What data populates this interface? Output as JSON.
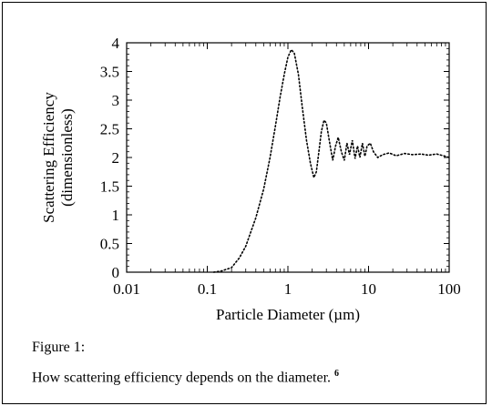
{
  "figure": {
    "label": "Figure 1:",
    "caption": "How scattering efficiency depends on the diameter.",
    "reference": "6"
  },
  "chart_data": {
    "type": "line",
    "xlabel": "Particle Diameter (µm)",
    "ylabel_line1": "Scattering Efficiency",
    "ylabel_line2": "(dimensionless)",
    "x_scale": "log",
    "xlim": [
      0.01,
      100
    ],
    "ylim": [
      0,
      4
    ],
    "x_ticks": [
      0.01,
      0.1,
      1,
      10,
      100
    ],
    "x_tick_labels": [
      "0.01",
      "0.1",
      "1",
      "10",
      "100"
    ],
    "y_ticks": [
      0,
      0.5,
      1,
      1.5,
      2,
      2.5,
      3,
      3.5,
      4
    ],
    "y_tick_labels": [
      "0",
      "0.5",
      "1",
      "1.5",
      "2",
      "2.5",
      "3",
      "3.5",
      "4"
    ],
    "grid": false,
    "line_style": "dotted",
    "series": [
      {
        "x": [
          0.12,
          0.15,
          0.2,
          0.25,
          0.3,
          0.4,
          0.5,
          0.6,
          0.7,
          0.8,
          0.9,
          1.0,
          1.1,
          1.2,
          1.35,
          1.5,
          1.7,
          1.9,
          2.1,
          2.25,
          2.4,
          2.6,
          2.8,
          3.0,
          3.3,
          3.6,
          3.9,
          4.2,
          4.6,
          5.0,
          5.4,
          5.8,
          6.3,
          6.8,
          7.3,
          7.8,
          8.4,
          9.0,
          9.6,
          10.5,
          11.5,
          13,
          15,
          18,
          22,
          28,
          35,
          45,
          55,
          70,
          85,
          100
        ],
        "y": [
          0.0,
          0.02,
          0.08,
          0.25,
          0.45,
          0.95,
          1.45,
          2.0,
          2.55,
          3.05,
          3.45,
          3.75,
          3.88,
          3.82,
          3.45,
          2.9,
          2.3,
          1.9,
          1.65,
          1.75,
          2.05,
          2.45,
          2.65,
          2.6,
          2.25,
          1.95,
          2.2,
          2.35,
          2.1,
          1.95,
          2.25,
          2.05,
          2.3,
          1.98,
          2.2,
          2.0,
          2.25,
          2.02,
          2.2,
          2.25,
          2.1,
          2.0,
          2.05,
          2.08,
          2.03,
          2.07,
          2.05,
          2.06,
          2.04,
          2.06,
          2.03,
          2.0
        ]
      }
    ]
  }
}
